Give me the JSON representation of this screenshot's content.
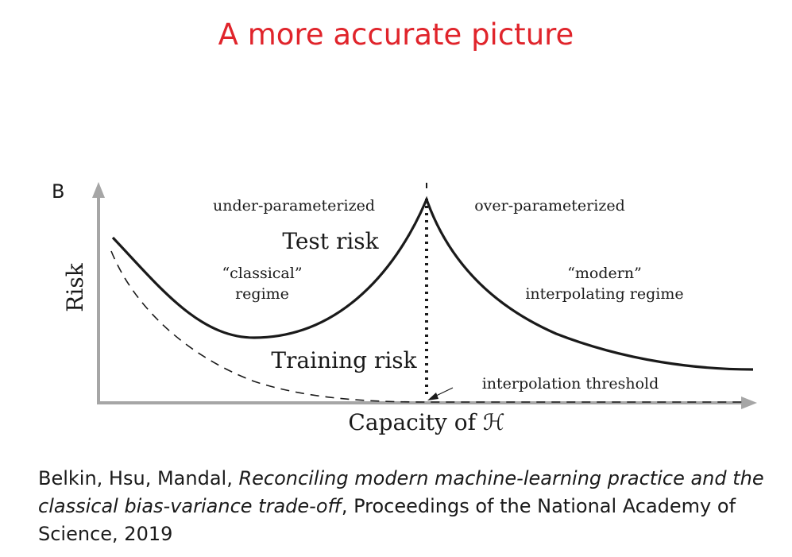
{
  "slide": {
    "title": "A more accurate picture"
  },
  "figure": {
    "panel_label": "B",
    "y_axis_label": "Risk",
    "x_axis_label": "Capacity of ℋ",
    "region_left_label": "under-parameterized",
    "region_right_label": "over-parameterized",
    "test_risk_label": "Test risk",
    "training_risk_label": "Training risk",
    "classical_label_line1": "“classical”",
    "classical_label_line2": "regime",
    "modern_label_line1": "“modern”",
    "modern_label_line2": "interpolating regime",
    "threshold_label": "interpolation threshold",
    "colors": {
      "axis": "#a6a6a6",
      "curve": "#1a1a1a",
      "title": "#e0242b"
    }
  },
  "citation": {
    "authors": "Belkin, Hsu, Mandal, ",
    "paper_title": "Reconciling modern machine-learning practice and the classical bias-variance trade-off",
    "venue": ", Proceedings of the National Academy of Science, 2019"
  }
}
